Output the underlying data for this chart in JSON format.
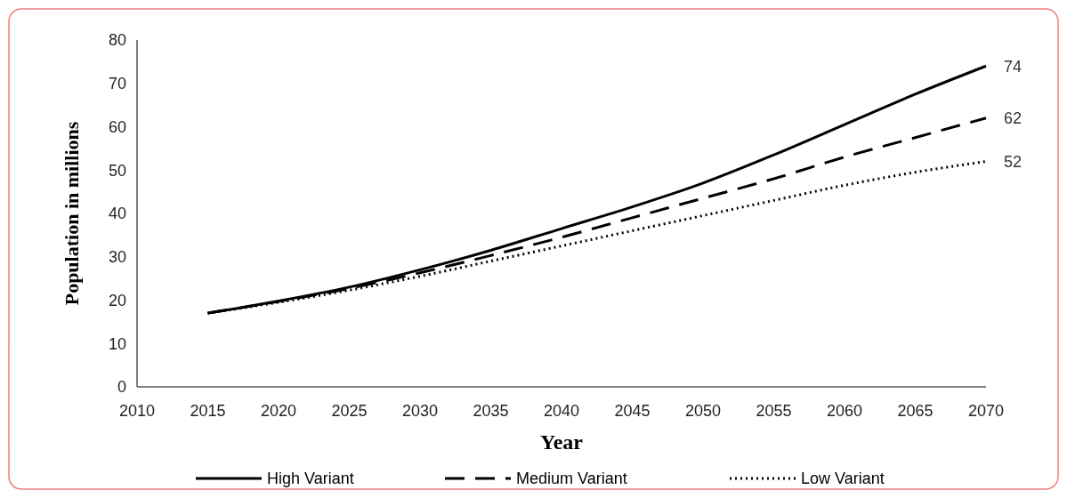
{
  "chart_data": {
    "type": "line",
    "xlabel": "Year",
    "ylabel": "Population in millions",
    "x": [
      2015,
      2020,
      2025,
      2030,
      2035,
      2040,
      2045,
      2050,
      2055,
      2060,
      2065,
      2070
    ],
    "xlim": [
      2010,
      2070
    ],
    "xticks": [
      2010,
      2015,
      2020,
      2025,
      2030,
      2035,
      2040,
      2045,
      2050,
      2055,
      2060,
      2065,
      2070
    ],
    "ylim": [
      0,
      80
    ],
    "yticks": [
      0,
      10,
      20,
      30,
      40,
      50,
      60,
      70,
      80
    ],
    "grid": false,
    "legend": "bottom",
    "marker": "none",
    "series": [
      {
        "name": "High Variant",
        "color": "#000000",
        "line_style": "solid",
        "values": [
          17,
          19.8,
          23,
          27,
          31.5,
          36.5,
          41.5,
          47,
          53.5,
          60.5,
          67.5,
          74
        ],
        "value_labels": [
          null,
          null,
          null,
          null,
          null,
          null,
          null,
          null,
          null,
          null,
          null,
          "74"
        ]
      },
      {
        "name": "Medium Variant",
        "color": "#000000",
        "line_style": "dashed",
        "values": [
          17,
          19.7,
          22.7,
          26.3,
          30.3,
          34.5,
          39,
          43.5,
          48,
          53,
          57.5,
          62
        ],
        "value_labels": [
          null,
          null,
          null,
          null,
          null,
          null,
          null,
          null,
          null,
          null,
          null,
          "62"
        ]
      },
      {
        "name": "Low Variant",
        "color": "#000000",
        "line_style": "dotted",
        "values": [
          17,
          19.5,
          22.3,
          25.5,
          29,
          32.5,
          36,
          39.5,
          43,
          46.5,
          49.5,
          52
        ],
        "value_labels": [
          null,
          null,
          null,
          null,
          null,
          null,
          null,
          null,
          null,
          null,
          null,
          "52"
        ]
      }
    ]
  }
}
